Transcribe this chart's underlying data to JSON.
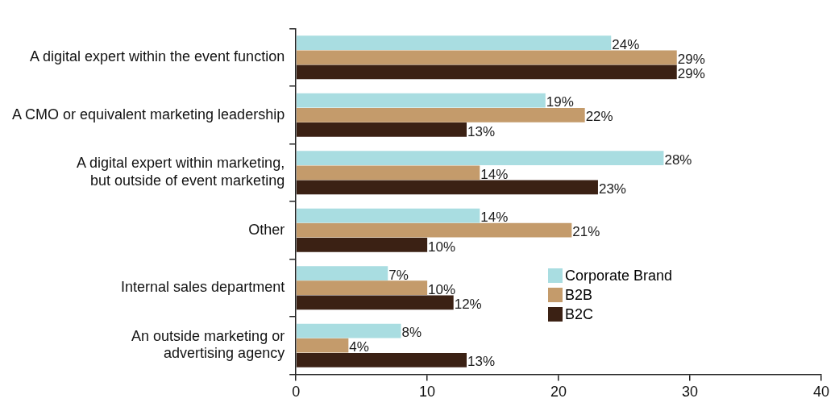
{
  "chart_data": {
    "type": "bar",
    "orientation": "horizontal",
    "categories": [
      "A digital expert within the event function",
      "A CMO or equivalent marketing leadership",
      "A digital expert within marketing,\nbut outside of event marketing",
      "Other",
      "Internal sales department",
      "An outside marketing or\nadvertising agency"
    ],
    "series": [
      {
        "name": "Corporate Brand",
        "color": "#a9dde1",
        "values": [
          24,
          19,
          28,
          14,
          7,
          8
        ],
        "value_labels": [
          "24%",
          "19%",
          "28%",
          "14%",
          "7%",
          "8%"
        ]
      },
      {
        "name": "B2B",
        "color": "#c49b6b",
        "values": [
          29,
          22,
          14,
          21,
          10,
          4
        ],
        "value_labels": [
          "29%",
          "22%",
          "14%",
          "21%",
          "10%",
          "4%"
        ]
      },
      {
        "name": "B2C",
        "color": "#3b2114",
        "values": [
          29,
          13,
          23,
          10,
          12,
          13
        ],
        "value_labels": [
          "29%",
          "13%",
          "23%",
          "10%",
          "12%",
          "13%"
        ]
      }
    ],
    "xlim": [
      0,
      40
    ],
    "xticks": [
      0,
      10,
      20,
      30,
      40
    ],
    "grid": false,
    "legend": "right"
  }
}
